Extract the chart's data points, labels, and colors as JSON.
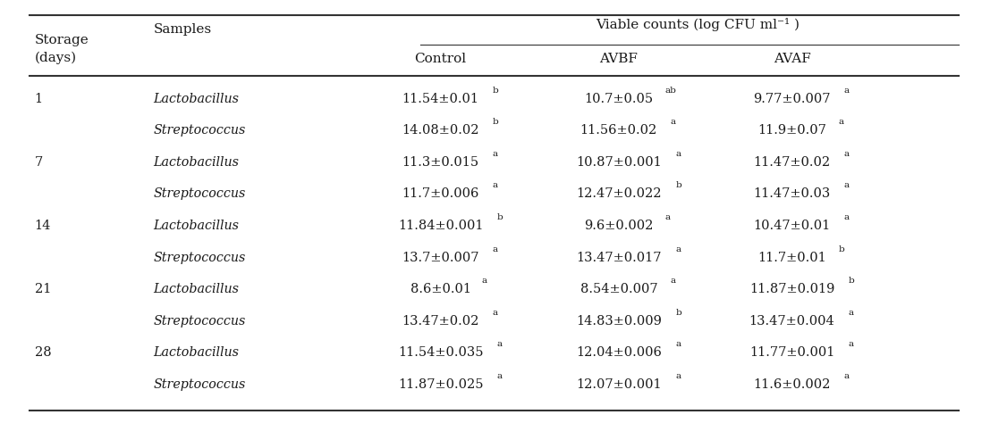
{
  "viable_counts_header": "Viable counts (log CFU ml⁻¹ )",
  "bg_color": "#ffffff",
  "text_color": "#1a1a1a",
  "line_color": "#333333",
  "rows": [
    [
      "1",
      "Lactobacillus",
      "11.54±0.01",
      "b",
      "10.7±0.05",
      "ab",
      "9.77±0.007",
      "a"
    ],
    [
      "",
      "Streptococcus",
      "14.08±0.02",
      "b",
      "11.56±0.02",
      "a",
      "11.9±0.07",
      "a"
    ],
    [
      "7",
      "Lactobacillus",
      "11.3±0.015",
      "a",
      "10.87±0.001",
      "a",
      "11.47±0.02",
      "a"
    ],
    [
      "",
      "Streptococcus",
      "11.7±0.006",
      "a",
      "12.47±0.022",
      "b",
      "11.47±0.03",
      "a"
    ],
    [
      "14",
      "Lactobacillus",
      "11.84±0.001",
      "b",
      "9.6±0.002",
      "a",
      "10.47±0.01",
      "a"
    ],
    [
      "",
      "Streptococcus",
      "13.7±0.007",
      "a",
      "13.47±0.017",
      "a",
      "11.7±0.01",
      "b"
    ],
    [
      "21",
      "Lactobacillus",
      "8.6±0.01",
      "a",
      "8.54±0.007",
      "a",
      "11.87±0.019",
      "b"
    ],
    [
      "",
      "Streptococcus",
      "13.47±0.02",
      "a",
      "14.83±0.009",
      "b",
      "13.47±0.004",
      "a"
    ],
    [
      "28",
      "Lactobacillus",
      "11.54±0.035",
      "a",
      "12.04±0.006",
      "a",
      "11.77±0.001",
      "a"
    ],
    [
      "",
      "Streptococcus",
      "11.87±0.025",
      "a",
      "12.07±0.001",
      "a",
      "11.6±0.002",
      "a"
    ]
  ]
}
